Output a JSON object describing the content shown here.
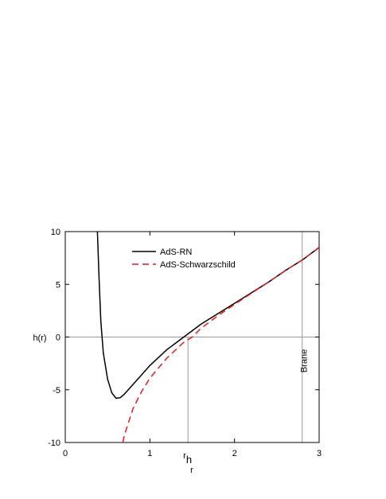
{
  "chart_data": {
    "type": "line",
    "x_label": "r",
    "y_label": "h(r)",
    "xlim": [
      0,
      3
    ],
    "ylim": [
      -10,
      10
    ],
    "xticks": [
      0,
      1,
      2,
      3
    ],
    "yticks": [
      -10,
      -5,
      0,
      5,
      10
    ],
    "series": [
      {
        "name": "AdS-RN",
        "color": "#000000",
        "dash": false,
        "x": [
          0.38,
          0.4,
          0.42,
          0.45,
          0.5,
          0.55,
          0.6,
          0.65,
          0.7,
          0.8,
          0.9,
          1.0,
          1.2,
          1.4,
          1.6,
          1.8,
          2.0,
          2.2,
          2.4,
          2.6,
          2.8,
          3.0
        ],
        "values": [
          10,
          5.5,
          1.5,
          -1.5,
          -4,
          -5.3,
          -5.8,
          -5.75,
          -5.4,
          -4.5,
          -3.6,
          -2.7,
          -1.2,
          0,
          1.2,
          2.2,
          3.2,
          4.2,
          5.2,
          6.3,
          7.3,
          8.5
        ]
      },
      {
        "name": "AdS-Schwarzschild",
        "color": "#e8191a",
        "dash": true,
        "x": [
          0.68,
          0.7,
          0.8,
          0.9,
          1.0,
          1.2,
          1.4,
          1.5,
          1.6,
          1.8,
          2.0,
          2.2,
          2.4,
          2.6,
          2.8,
          3.0
        ],
        "values": [
          -10,
          -9.3,
          -6.8,
          -5.2,
          -3.9,
          -2.0,
          -0.5,
          0,
          0.8,
          2.0,
          3.1,
          4.15,
          5.2,
          6.3,
          7.3,
          8.5
        ]
      }
    ],
    "vlines": [
      {
        "x": 1.45,
        "label": "r",
        "subscript": "h",
        "to_zero": true
      },
      {
        "x": 2.8,
        "label": "Brane",
        "to_zero": false
      }
    ],
    "hline": 0
  }
}
